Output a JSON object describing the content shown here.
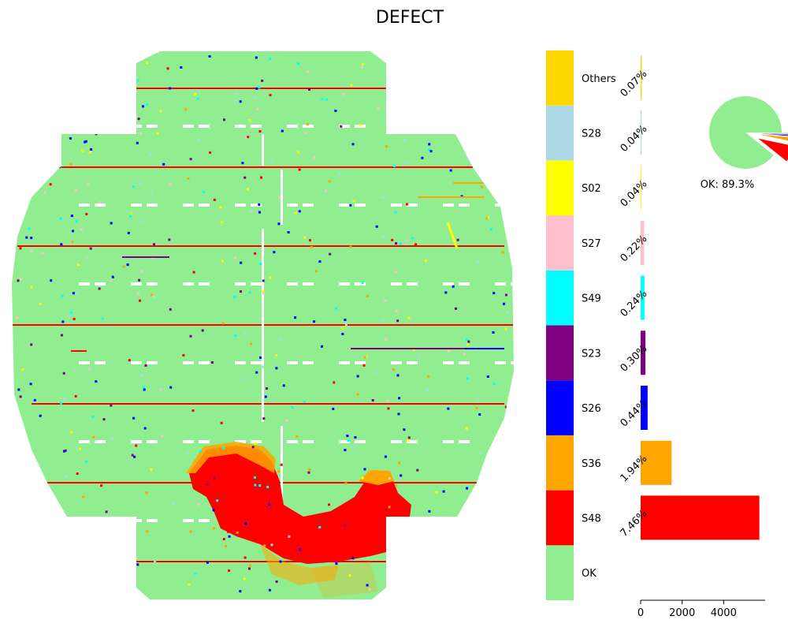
{
  "title": "DEFECT",
  "colors": {
    "OK": "#90ee90",
    "S48": "#ff0000",
    "S36": "#ffa500",
    "S26": "#0000ff",
    "S23": "#800080",
    "S49": "#00ffff",
    "S27": "#ffc0cb",
    "S02": "#ffff00",
    "S28": "#add8e6",
    "Others": "#ffd700"
  },
  "chart_data": [
    {
      "type": "heatmap",
      "title": "DEFECT",
      "description_categories": [
        "OK",
        "S48",
        "S36",
        "S26",
        "S23",
        "S49",
        "S27",
        "S02",
        "S28",
        "Others"
      ],
      "legend_labels": [
        "OK",
        "S48",
        "S36",
        "S26",
        "S23",
        "S49",
        "S27",
        "S02",
        "S28",
        "Others"
      ],
      "grid": false
    },
    {
      "type": "bar",
      "orientation": "horizontal",
      "categories": [
        "S48",
        "S36",
        "S26",
        "S23",
        "S49",
        "S27",
        "S02",
        "S28",
        "Others"
      ],
      "values": [
        5720,
        1490,
        337,
        230,
        184,
        169,
        31,
        31,
        54
      ],
      "percent_labels": [
        "7.46%",
        "1.94%",
        "0.44%",
        "0.30%",
        "0.24%",
        "0.22%",
        "0.04%",
        "0.04%",
        "0.07%"
      ],
      "xticks": [
        "0",
        "2000",
        "4000"
      ],
      "xtick_values": [
        0,
        2000,
        4000
      ],
      "xlim": [
        0,
        6000
      ]
    },
    {
      "type": "pie",
      "slices": [
        {
          "label": "OK",
          "value": 89.3
        },
        {
          "label": "S48",
          "value": 7.46
        },
        {
          "label": "S36",
          "value": 1.94
        },
        {
          "label": "S26",
          "value": 0.44
        },
        {
          "label": "S23",
          "value": 0.3
        },
        {
          "label": "S49",
          "value": 0.24
        },
        {
          "label": "S27",
          "value": 0.22
        },
        {
          "label": "S02",
          "value": 0.04
        },
        {
          "label": "S28",
          "value": 0.04
        },
        {
          "label": "Others",
          "value": 0.07
        }
      ],
      "annotation": "OK:  89.3%"
    }
  ]
}
